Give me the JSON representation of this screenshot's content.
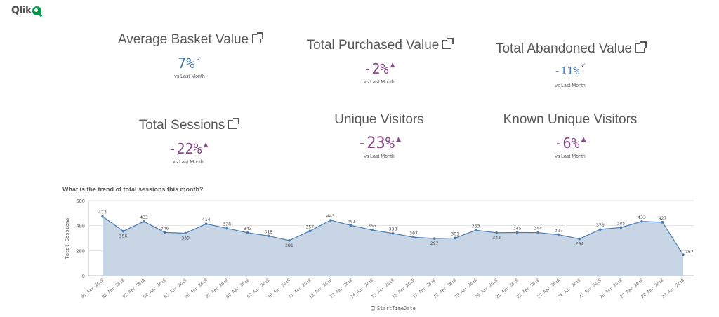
{
  "logo": {
    "text": "Qlik"
  },
  "kpis": [
    {
      "title": "Average Basket Value",
      "value": "7%",
      "sub": "vs Last Month",
      "color": "#4477aa",
      "indicator": "check",
      "link": true
    },
    {
      "title": "Total Purchased Value",
      "value": "-2%",
      "sub": "vs Last Month",
      "color": "#8a4a8c",
      "indicator": "warning",
      "link": true
    },
    {
      "title": "Total Abandoned Value",
      "value": "-11%",
      "sub": "vs Last Month",
      "color": "#4477aa",
      "indicator": "check",
      "link": true
    },
    {
      "title": "Total Sessions",
      "value": "-22%",
      "sub": "vs Last Month",
      "color": "#8a4a8c",
      "indicator": "warning",
      "link": true
    },
    {
      "title": "Unique Visitors",
      "value": "-23%",
      "sub": "vs Last Month",
      "color": "#8a4a8c",
      "indicator": "warning",
      "link": false
    },
    {
      "title": "Known Unique Visitors",
      "value": "-6%",
      "sub": "vs Last Month",
      "color": "#8a4a8c",
      "indicator": "warning",
      "link": false
    }
  ],
  "chart_data": {
    "type": "area",
    "title": "What is the trend of total sessions this month?",
    "xlabel": "StartTimeDate",
    "ylabel": "Total Sessions",
    "ylim": [
      0,
      600
    ],
    "yticks": [
      0,
      200,
      400,
      600
    ],
    "grid": true,
    "categories": [
      "01 Apr 2018",
      "02 Apr 2018",
      "03 Apr 2018",
      "04 Apr 2018",
      "05 Apr 2018",
      "06 Apr 2018",
      "07 Apr 2018",
      "08 Apr 2018",
      "09 Apr 2018",
      "10 Apr 2018",
      "11 Apr 2018",
      "12 Apr 2018",
      "13 Apr 2018",
      "14 Apr 2018",
      "15 Apr 2018",
      "16 Apr 2018",
      "17 Apr 2018",
      "18 Apr 2018",
      "19 Apr 2018",
      "20 Apr 2018",
      "21 Apr 2018",
      "22 Apr 2018",
      "23 Apr 2018",
      "24 Apr 2018",
      "25 Apr 2018",
      "26 Apr 2018",
      "27 Apr 2018",
      "28 Apr 2018",
      "29 Apr 2018"
    ],
    "values": [
      473,
      356,
      433,
      346,
      339,
      414,
      378,
      343,
      318,
      281,
      357,
      443,
      401,
      365,
      338,
      307,
      297,
      301,
      363,
      343,
      345,
      344,
      327,
      294,
      370,
      385,
      433,
      427,
      167
    ],
    "line_color": "#4a7cb0",
    "fill_color": "#c7d5e4"
  }
}
